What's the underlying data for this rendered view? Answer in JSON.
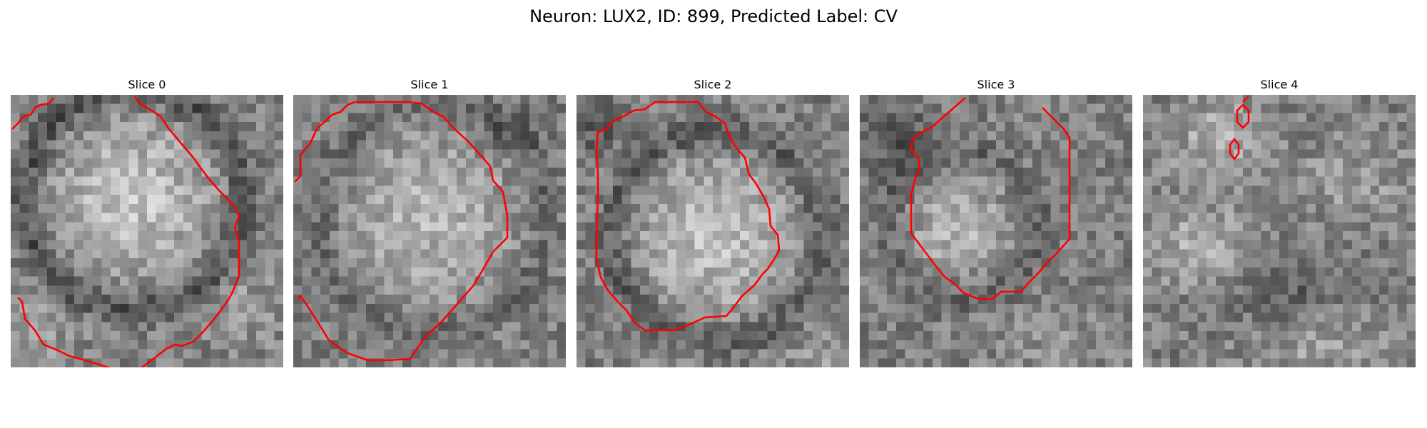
{
  "figure": {
    "title": "Neuron: LUX2, ID: 899, Predicted Label: CV"
  },
  "grid_size": 30,
  "contour_color": "#ff0000",
  "slices": [
    {
      "title": "Slice 0"
    },
    {
      "title": "Slice 1"
    },
    {
      "title": "Slice 2"
    },
    {
      "title": "Slice 3"
    },
    {
      "title": "Slice 4"
    }
  ]
}
